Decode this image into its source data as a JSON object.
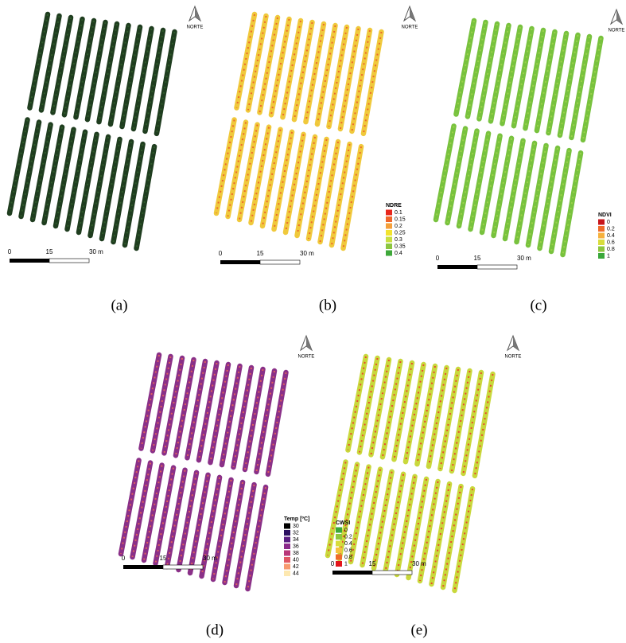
{
  "panels": [
    {
      "caption": "(a)",
      "north": "NORTE",
      "scale": [
        "0",
        "15",
        "30 m"
      ]
    },
    {
      "caption": "(b)",
      "north": "NORTE",
      "scale": [
        "0",
        "15",
        "30 m"
      ],
      "legend": {
        "title": "NDRE",
        "items": [
          {
            "label": "0.1",
            "color": "#e8261c"
          },
          {
            "label": "0.15",
            "color": "#f0662a"
          },
          {
            "label": "0.2",
            "color": "#f5a03a"
          },
          {
            "label": "0.25",
            "color": "#f2e32e"
          },
          {
            "label": "0.3",
            "color": "#c9df3f"
          },
          {
            "label": "0.35",
            "color": "#8cc63f"
          },
          {
            "label": "0.4",
            "color": "#3ea83a"
          }
        ]
      }
    },
    {
      "caption": "(c)",
      "north": "NORTE",
      "scale": [
        "0",
        "15",
        "30 m"
      ],
      "legend": {
        "title": "NDVI",
        "items": [
          {
            "label": "0",
            "color": "#c8151b"
          },
          {
            "label": "0.2",
            "color": "#ef6b2a"
          },
          {
            "label": "0.4",
            "color": "#f6b13d"
          },
          {
            "label": "0.6",
            "color": "#d8dd3c"
          },
          {
            "label": "0.8",
            "color": "#8dc63f"
          },
          {
            "label": "1",
            "color": "#3aa83a"
          }
        ]
      }
    },
    {
      "caption": "(d)",
      "north": "NORTE",
      "scale": [
        "0",
        "15",
        "30 m"
      ],
      "legend": {
        "title": "Temp [ºC]",
        "items": [
          {
            "label": "30",
            "color": "#000000"
          },
          {
            "label": "32",
            "color": "#2c1160"
          },
          {
            "label": "34",
            "color": "#5a1e82"
          },
          {
            "label": "36",
            "color": "#8a2a8a"
          },
          {
            "label": "38",
            "color": "#b83779"
          },
          {
            "label": "40",
            "color": "#e05763"
          },
          {
            "label": "42",
            "color": "#f79a6e"
          },
          {
            "label": "44",
            "color": "#fde8b0"
          }
        ]
      }
    },
    {
      "caption": "(e)",
      "north": "NORTE",
      "scale": [
        "0",
        "15",
        "30 m"
      ],
      "legend": {
        "title": "CWSI",
        "items": [
          {
            "label": "0",
            "color": "#3aa83a"
          },
          {
            "label": "0.2",
            "color": "#8dc63f"
          },
          {
            "label": "0.4",
            "color": "#d8dd3c"
          },
          {
            "label": "0.6",
            "color": "#f6c13d"
          },
          {
            "label": "0.8",
            "color": "#ef6b2a"
          },
          {
            "label": "1",
            "color": "#e3151b"
          }
        ]
      }
    }
  ]
}
